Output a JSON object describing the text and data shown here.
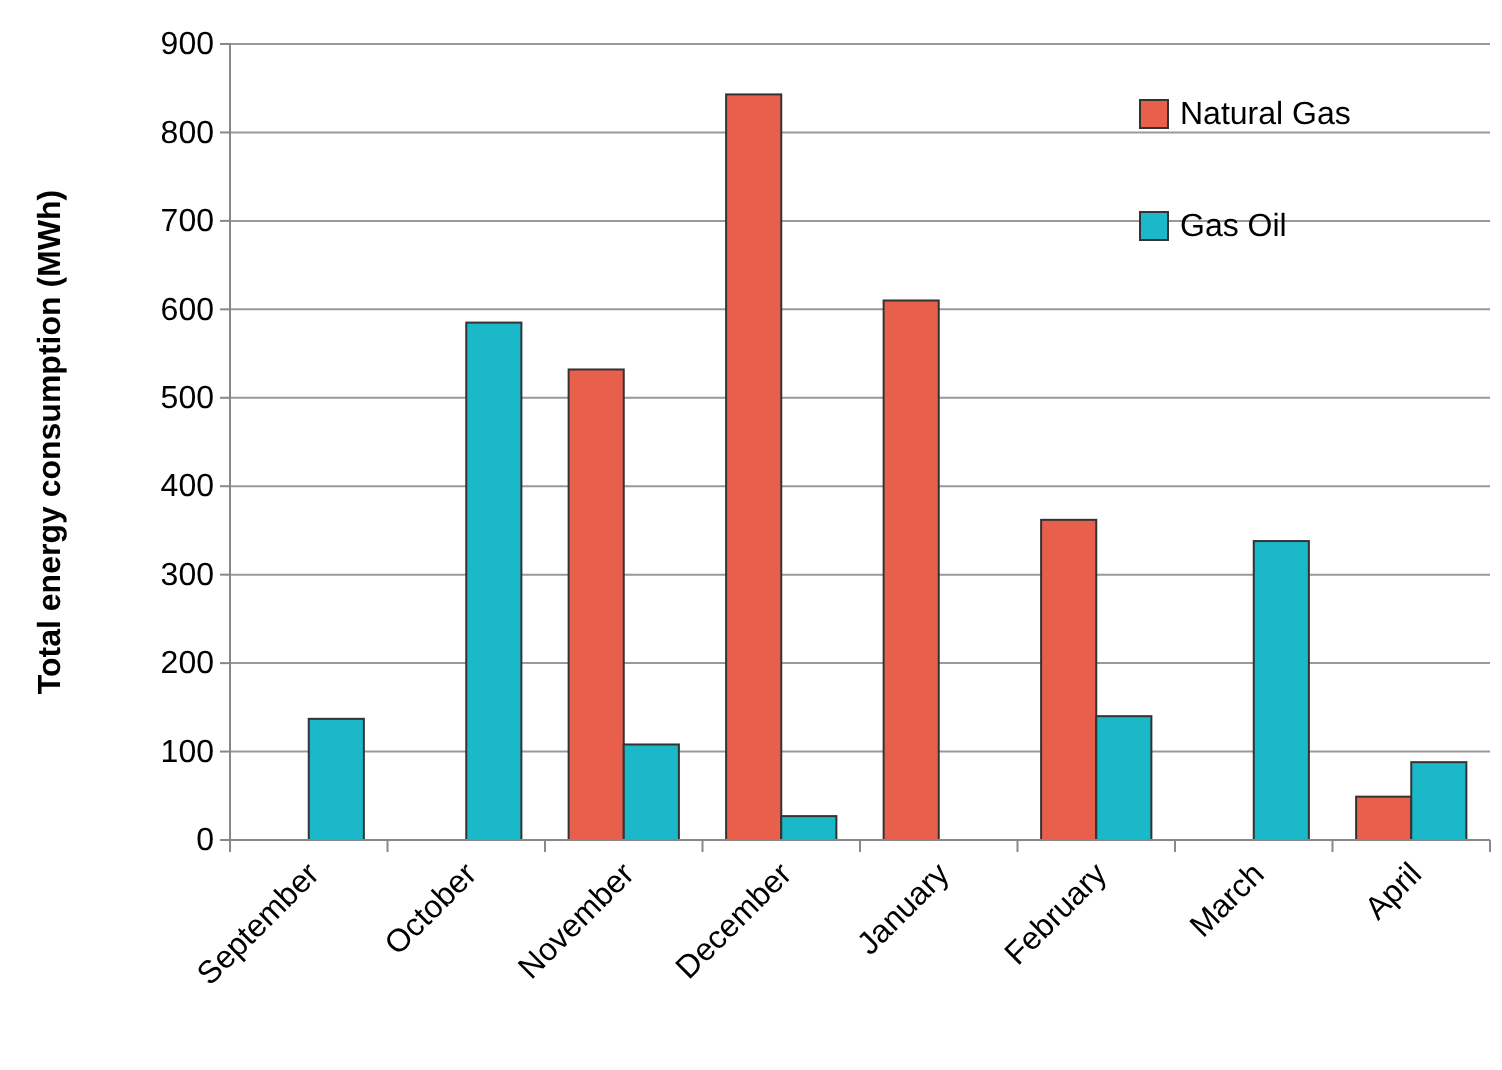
{
  "chart_data": {
    "type": "bar",
    "ylabel": "Total energy consumption (MWh)",
    "categories": [
      "September",
      "October",
      "November",
      "December",
      "January",
      "February",
      "March",
      "April"
    ],
    "series": [
      {
        "name": "Natural Gas",
        "color": "#e8604c",
        "values": [
          null,
          null,
          532,
          843,
          610,
          362,
          null,
          49
        ]
      },
      {
        "name": "Gas Oil",
        "color": "#1ab8c8",
        "values": [
          137,
          585,
          108,
          27,
          null,
          140,
          338,
          88
        ]
      }
    ],
    "ylim": [
      0,
      900
    ],
    "yticks": [
      0,
      100,
      200,
      300,
      400,
      500,
      600,
      700,
      800,
      900
    ],
    "grid": "y",
    "legend": "top right"
  }
}
